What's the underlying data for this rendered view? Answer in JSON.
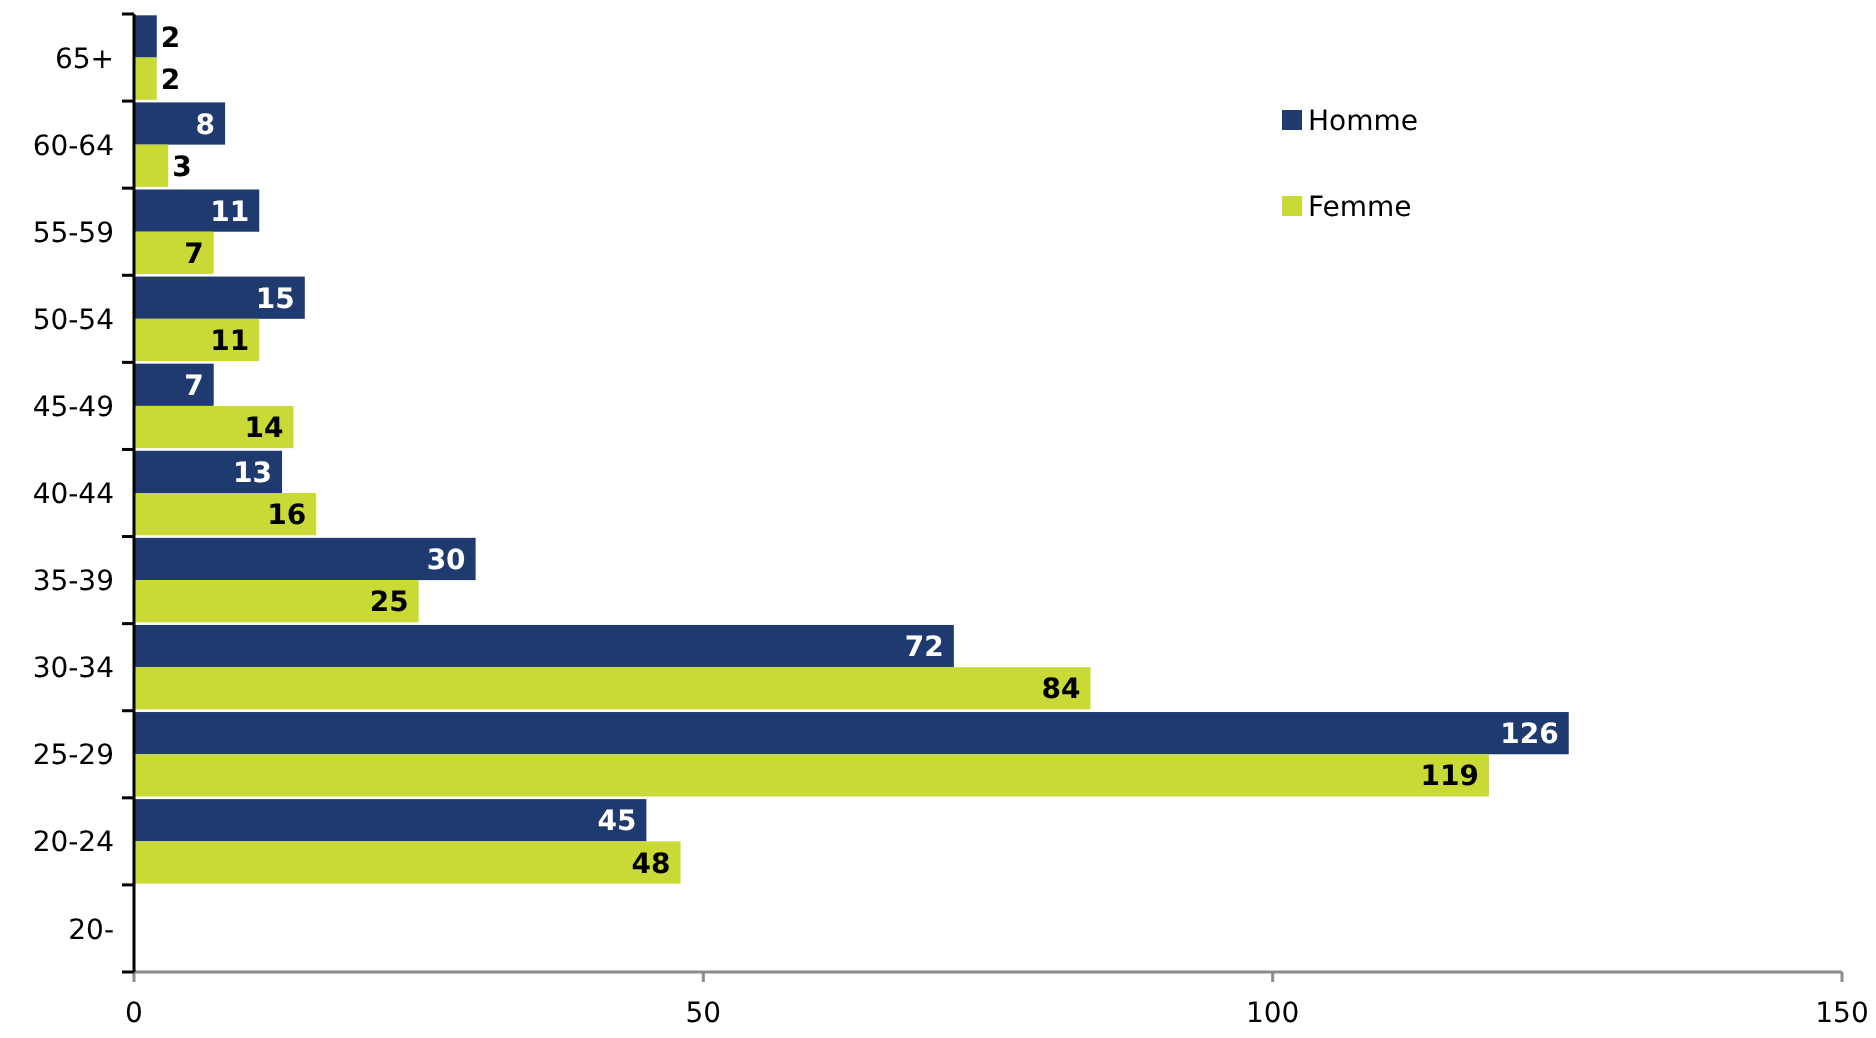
{
  "chart_data": {
    "type": "bar",
    "orientation": "horizontal",
    "categories": [
      "65+",
      "60-64",
      "55-59",
      "50-54",
      "45-49",
      "40-44",
      "35-39",
      "30-34",
      "25-29",
      "20-24",
      "20-"
    ],
    "series": [
      {
        "name": "Homme",
        "color": "#1f3a6e",
        "values": [
          2,
          8,
          11,
          15,
          7,
          13,
          30,
          72,
          126,
          45,
          null
        ]
      },
      {
        "name": "Femme",
        "color": "#c9d935",
        "values": [
          2,
          3,
          7,
          11,
          14,
          16,
          25,
          84,
          119,
          48,
          null
        ]
      }
    ],
    "xlim": [
      0,
      150
    ],
    "xticks": [
      0,
      50,
      100,
      150
    ],
    "data_labels": true,
    "legend": "top right"
  }
}
